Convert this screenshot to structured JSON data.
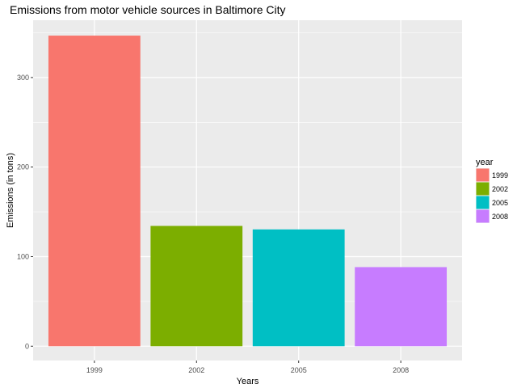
{
  "chart_data": {
    "type": "bar",
    "title": "Emissions from motor vehicle sources in Baltimore City",
    "xlabel": "Years",
    "ylabel": "Emissions (in tons)",
    "categories": [
      "1999",
      "2002",
      "2005",
      "2008"
    ],
    "values": [
      346.8,
      134.3,
      130.4,
      88.3
    ],
    "colors": [
      "#F8766D",
      "#7CAE00",
      "#00BFC4",
      "#C77CFF"
    ],
    "ylim": [
      -16,
      364
    ],
    "yticks": [
      0,
      100,
      200,
      300
    ],
    "grid": true,
    "panel_background": "#EBEBEB",
    "legend": {
      "title": "year",
      "position": "right",
      "entries": [
        "1999",
        "2002",
        "2005",
        "2008"
      ]
    }
  }
}
